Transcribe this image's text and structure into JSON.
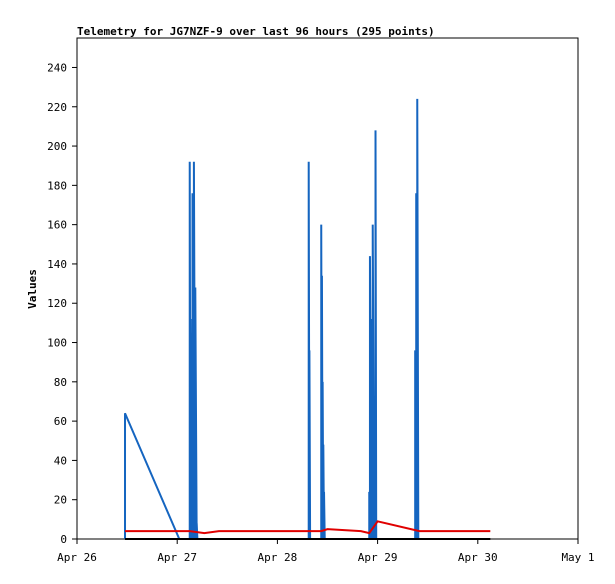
{
  "chart_data": {
    "type": "line",
    "title": "Telemetry for JG7NZF-9 over last 96 hours (295 points)",
    "xlabel": "",
    "ylabel": "Values",
    "x_ticks": [
      "Apr 26",
      "Apr 27",
      "Apr 28",
      "Apr 29",
      "Apr 30",
      "May 1"
    ],
    "y_ticks": [
      "0",
      "20",
      "40",
      "60",
      "80",
      "100",
      "120",
      "140",
      "160",
      "180",
      "200",
      "220",
      "240"
    ],
    "xlim": [
      "Apr 26 00:00",
      "May 1 00:00"
    ],
    "ylim": [
      0,
      255
    ],
    "grid": false,
    "legend": "none",
    "series": [
      {
        "color": "#1565c0",
        "points": [
          [
            "Apr 26 11:30",
            0
          ],
          [
            "Apr 26 11:30",
            64
          ],
          [
            "Apr 27 00:30",
            0
          ],
          [
            "Apr 27 03:00",
            0
          ],
          [
            "Apr 27 03:00",
            192
          ],
          [
            "Apr 27 03:10",
            0
          ],
          [
            "Apr 27 03:10",
            112
          ],
          [
            "Apr 27 03:25",
            0
          ],
          [
            "Apr 27 03:25",
            84
          ],
          [
            "Apr 27 03:40",
            0
          ],
          [
            "Apr 27 03:40",
            176
          ],
          [
            "Apr 27 04:00",
            0
          ],
          [
            "Apr 27 04:00",
            192
          ],
          [
            "Apr 27 04:20",
            0
          ],
          [
            "Apr 27 04:20",
            128
          ],
          [
            "Apr 27 04:40",
            0
          ],
          [
            "Apr 27 04:40",
            8
          ],
          [
            "Apr 27 04:50",
            0
          ],
          [
            "Apr 28 07:30",
            0
          ],
          [
            "Apr 28 07:30",
            192
          ],
          [
            "Apr 28 07:40",
            0
          ],
          [
            "Apr 28 07:40",
            96
          ],
          [
            "Apr 28 07:50",
            0
          ],
          [
            "Apr 28 10:30",
            0
          ],
          [
            "Apr 28 10:30",
            160
          ],
          [
            "Apr 28 10:40",
            0
          ],
          [
            "Apr 28 10:40",
            134
          ],
          [
            "Apr 28 10:50",
            0
          ],
          [
            "Apr 28 10:50",
            80
          ],
          [
            "Apr 28 11:00",
            0
          ],
          [
            "Apr 28 11:00",
            48
          ],
          [
            "Apr 28 11:10",
            0
          ],
          [
            "Apr 28 11:10",
            24
          ],
          [
            "Apr 28 11:20",
            0
          ],
          [
            "Apr 28 22:00",
            0
          ],
          [
            "Apr 28 22:00",
            24
          ],
          [
            "Apr 28 22:10",
            0
          ],
          [
            "Apr 28 22:10",
            144
          ],
          [
            "Apr 28 22:30",
            0
          ],
          [
            "Apr 28 22:30",
            112
          ],
          [
            "Apr 28 22:50",
            0
          ],
          [
            "Apr 28 22:50",
            160
          ],
          [
            "Apr 28 23:10",
            0
          ],
          [
            "Apr 28 23:10",
            32
          ],
          [
            "Apr 28 23:30",
            0
          ],
          [
            "Apr 28 23:30",
            208
          ],
          [
            "Apr 28 23:40",
            0
          ],
          [
            "Apr 29 09:00",
            0
          ],
          [
            "Apr 29 09:00",
            96
          ],
          [
            "Apr 29 09:15",
            0
          ],
          [
            "Apr 29 09:15",
            176
          ],
          [
            "Apr 29 09:30",
            0
          ],
          [
            "Apr 29 09:30",
            224
          ],
          [
            "Apr 29 09:45",
            0
          ]
        ]
      },
      {
        "color": "#e00000",
        "points": [
          [
            "Apr 26 11:30",
            4
          ],
          [
            "Apr 27 03:00",
            4
          ],
          [
            "Apr 27 06:30",
            3
          ],
          [
            "Apr 27 10:00",
            4
          ],
          [
            "Apr 28 10:30",
            4
          ],
          [
            "Apr 28 12:00",
            5
          ],
          [
            "Apr 28 20:00",
            4
          ],
          [
            "Apr 28 22:00",
            3
          ],
          [
            "Apr 29 00:00",
            9
          ],
          [
            "Apr 29 10:00",
            4
          ],
          [
            "Apr 30 03:00",
            4
          ]
        ]
      },
      {
        "color": "#000000",
        "points": [
          [
            "Apr 26 11:30",
            0
          ],
          [
            "Apr 30 03:00",
            0
          ]
        ]
      }
    ]
  }
}
